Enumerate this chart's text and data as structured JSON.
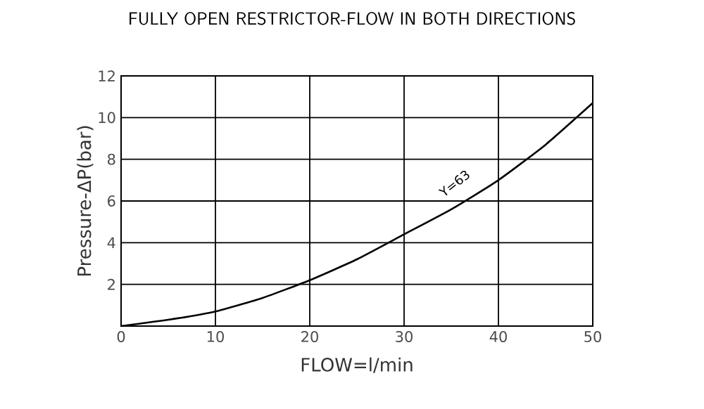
{
  "chart_data": {
    "type": "line",
    "title": "FULLY OPEN RESTRICTOR-FLOW IN BOTH DIRECTIONS",
    "xlabel": "FLOW=l/min",
    "ylabel": "Pressure-ΔP(bar)",
    "annotations": [
      "Y=63"
    ],
    "series": [
      {
        "color": "#000000",
        "x": [
          0,
          5,
          10,
          15,
          20,
          25,
          30,
          35,
          40,
          45,
          50
        ],
        "values": [
          0,
          0.3,
          0.7,
          1.35,
          2.2,
          3.2,
          4.4,
          5.6,
          7,
          8.7,
          10.7
        ]
      }
    ],
    "xlim": [
      0,
      50
    ],
    "ylim": [
      0,
      12
    ],
    "xticks": [
      0,
      10,
      20,
      30,
      40,
      50
    ],
    "yticks": [
      {
        "value": 0,
        "label": null
      },
      2,
      4,
      6,
      8,
      10,
      12
    ],
    "grid": true,
    "marker": "none",
    "line_style": "solid"
  }
}
